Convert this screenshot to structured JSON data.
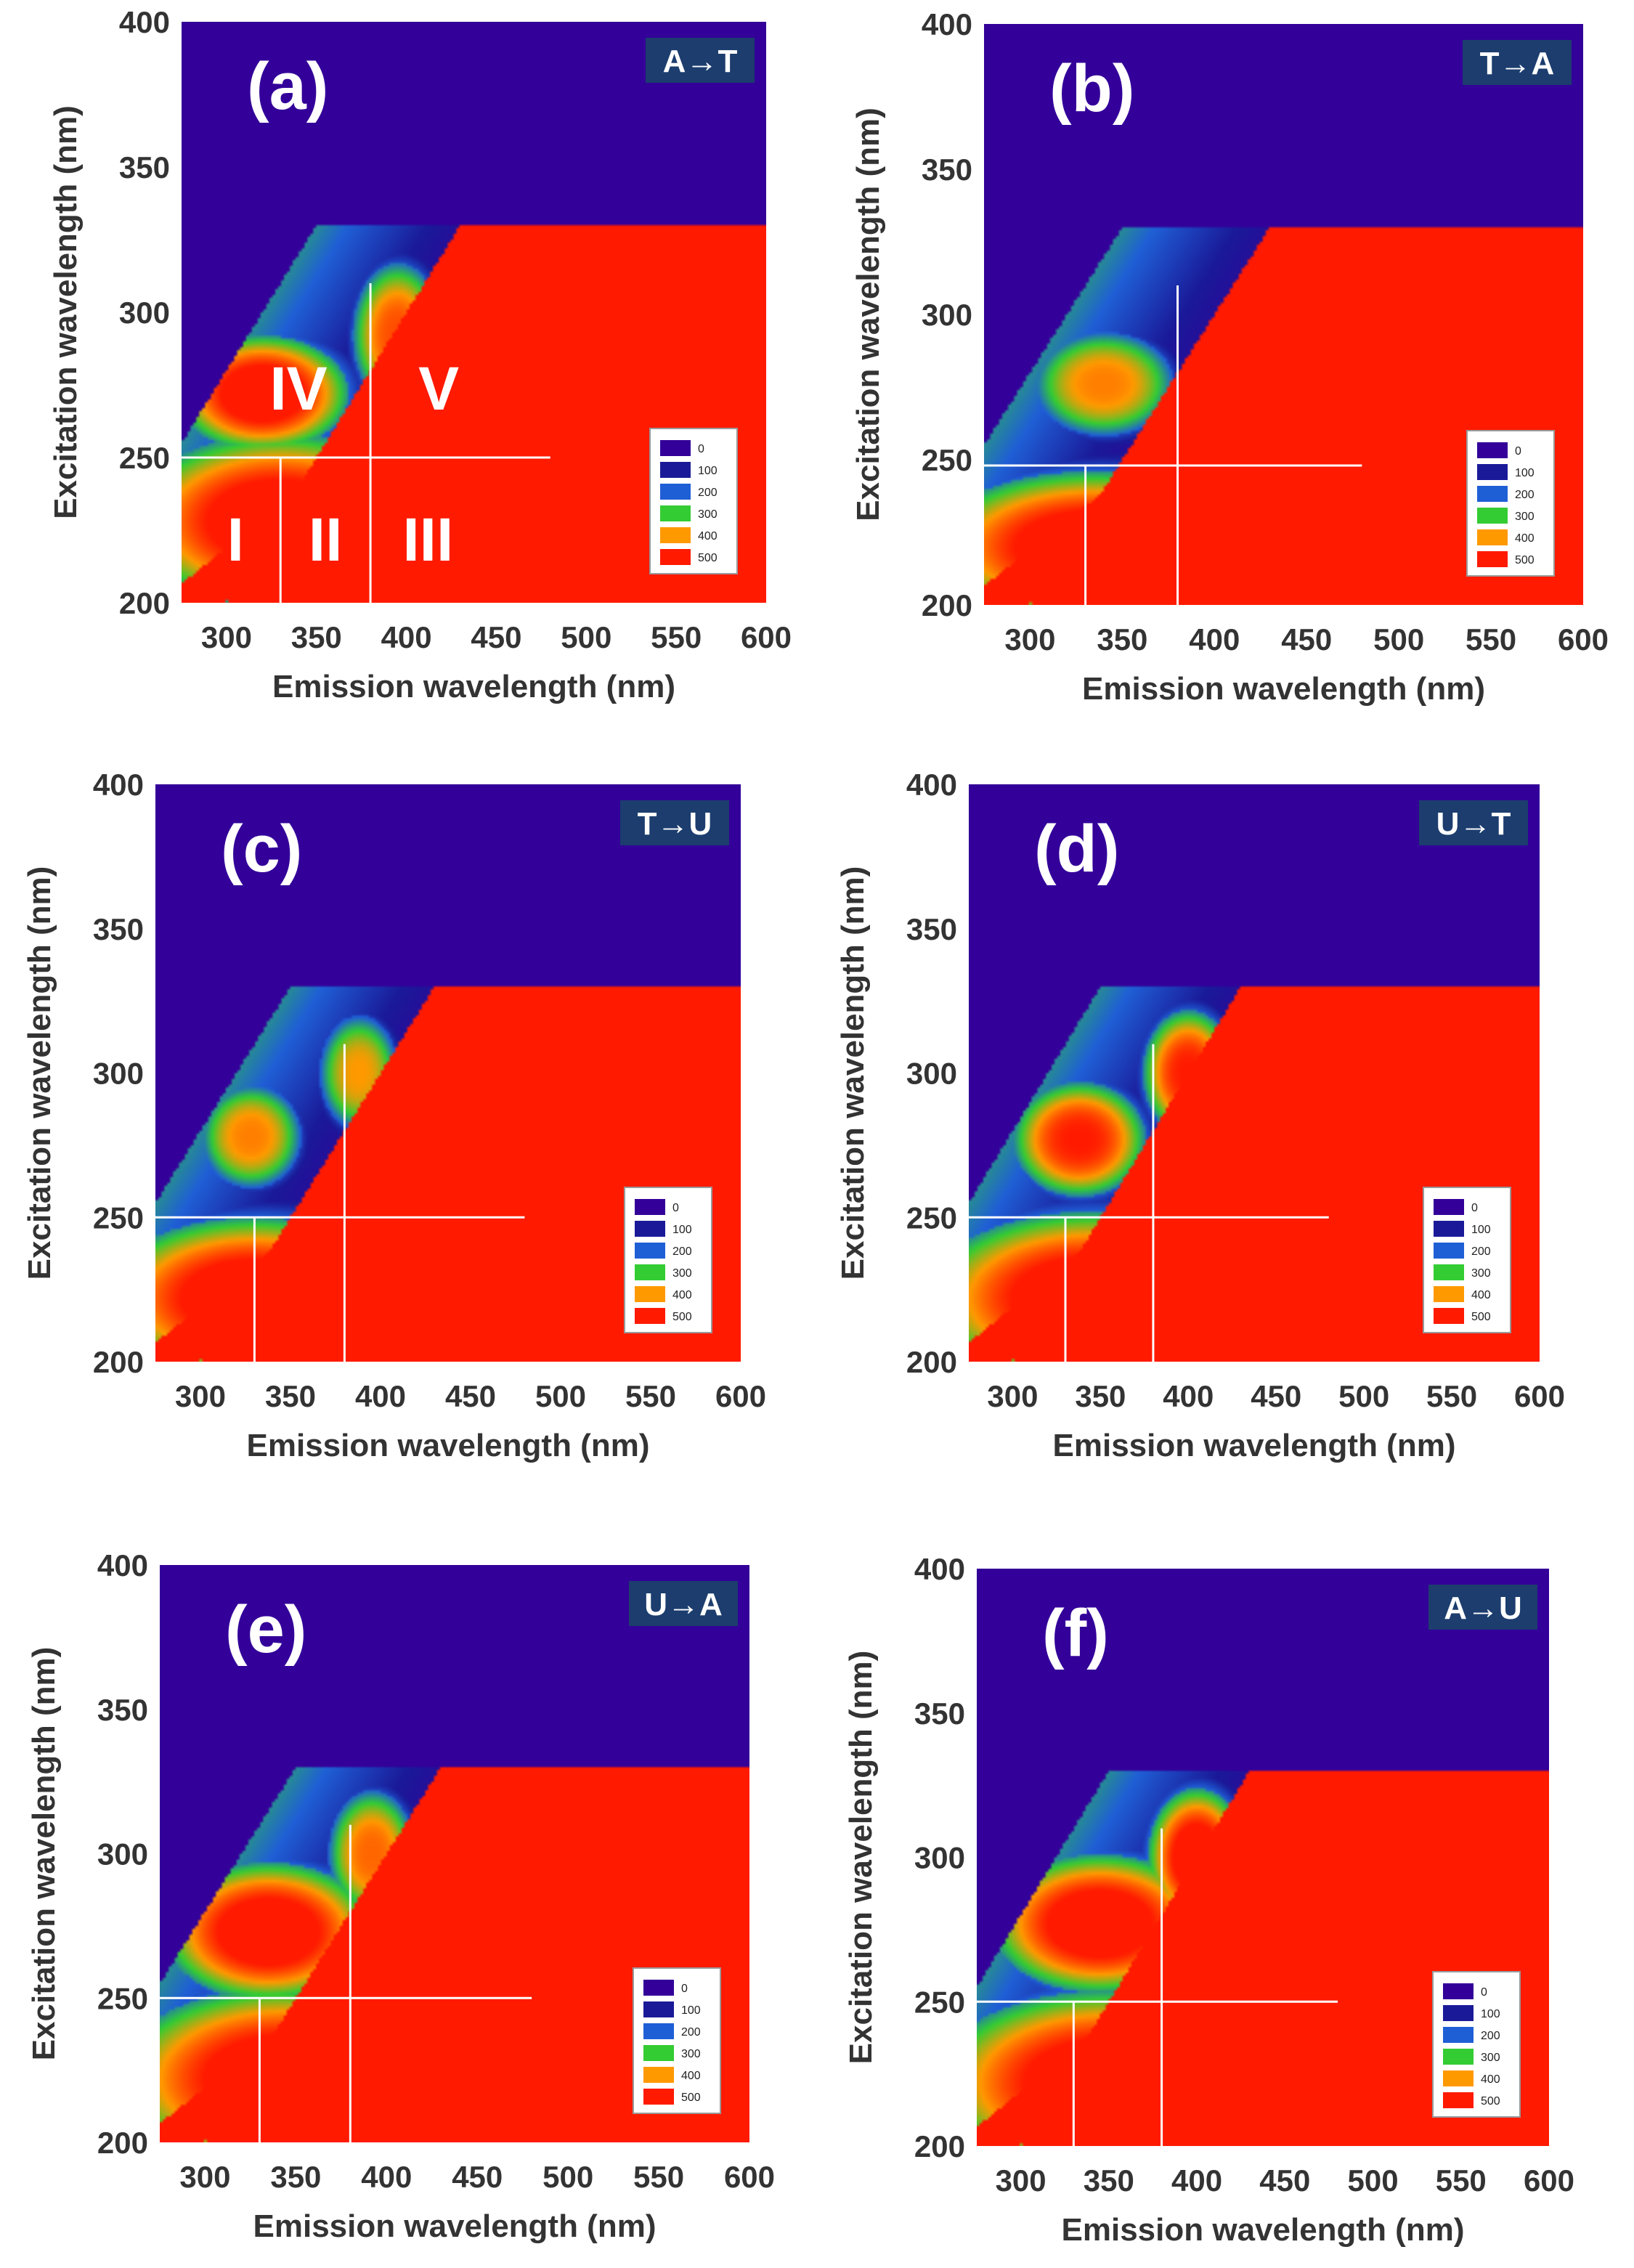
{
  "chart_data": [
    {
      "id": "a",
      "type": "heatmap",
      "panel_label": "(a)",
      "tag": "A→T",
      "xlabel": "Emission wavelength (nm)",
      "ylabel": "Excitation wavelength (nm)",
      "xlim": [
        275,
        600
      ],
      "ylim": [
        200,
        400
      ],
      "xticks": [
        "300",
        "350",
        "400",
        "450",
        "500",
        "550",
        "600"
      ],
      "yticks": [
        "200",
        "250",
        "300",
        "350",
        "400"
      ],
      "guides": {
        "x": [
          330,
          380
        ],
        "y": 250
      },
      "legend": {
        "levels": [
          "0",
          "100",
          "200",
          "300",
          "400",
          "500"
        ],
        "colors": [
          "#330099",
          "#1a1a99",
          "#1f5fd6",
          "#33cc33",
          "#ff9900",
          "#ff1a00"
        ]
      },
      "regions": [
        {
          "label": "I",
          "x": 305,
          "y": 222
        },
        {
          "label": "II",
          "x": 355,
          "y": 222
        },
        {
          "label": "III",
          "x": 412,
          "y": 222
        },
        {
          "label": "IV",
          "x": 340,
          "y": 274
        },
        {
          "label": "V",
          "x": 418,
          "y": 274
        }
      ]
    },
    {
      "id": "b",
      "type": "heatmap",
      "panel_label": "(b)",
      "tag": "T→A",
      "xlabel": "Emission wavelength (nm)",
      "ylabel": "Excitation wavelength (nm)",
      "xlim": [
        275,
        600
      ],
      "ylim": [
        200,
        400
      ],
      "xticks": [
        "300",
        "350",
        "400",
        "450",
        "500",
        "550",
        "600"
      ],
      "yticks": [
        "200",
        "250",
        "300",
        "350",
        "400"
      ],
      "guides": {
        "x": [
          330,
          380
        ],
        "y": 248
      },
      "legend": {
        "levels": [
          "0",
          "100",
          "200",
          "300",
          "400",
          "500"
        ],
        "colors": [
          "#330099",
          "#1a1a99",
          "#1f5fd6",
          "#33cc33",
          "#ff9900",
          "#ff1a00"
        ]
      },
      "regions": []
    },
    {
      "id": "c",
      "type": "heatmap",
      "panel_label": "(c)",
      "tag": "T→U",
      "xlabel": "Emission wavelength (nm)",
      "ylabel": "Excitation wavelength (nm)",
      "xlim": [
        275,
        600
      ],
      "ylim": [
        200,
        400
      ],
      "xticks": [
        "300",
        "350",
        "400",
        "450",
        "500",
        "550",
        "600"
      ],
      "yticks": [
        "200",
        "250",
        "300",
        "350",
        "400"
      ],
      "guides": {
        "x": [
          330,
          380
        ],
        "y": 250
      },
      "legend": {
        "levels": [
          "0",
          "100",
          "200",
          "300",
          "400",
          "500"
        ],
        "colors": [
          "#330099",
          "#1a1a99",
          "#1f5fd6",
          "#33cc33",
          "#ff9900",
          "#ff1a00"
        ]
      },
      "regions": []
    },
    {
      "id": "d",
      "type": "heatmap",
      "panel_label": "(d)",
      "tag": "U→T",
      "xlabel": "Emission wavelength (nm)",
      "ylabel": "Excitation wavelength (nm)",
      "xlim": [
        275,
        600
      ],
      "ylim": [
        200,
        400
      ],
      "xticks": [
        "300",
        "350",
        "400",
        "450",
        "500",
        "550",
        "600"
      ],
      "yticks": [
        "200",
        "250",
        "300",
        "350",
        "400"
      ],
      "guides": {
        "x": [
          330,
          380
        ],
        "y": 250
      },
      "legend": {
        "levels": [
          "0",
          "100",
          "200",
          "300",
          "400",
          "500"
        ],
        "colors": [
          "#330099",
          "#1a1a99",
          "#1f5fd6",
          "#33cc33",
          "#ff9900",
          "#ff1a00"
        ]
      },
      "regions": []
    },
    {
      "id": "e",
      "type": "heatmap",
      "panel_label": "(e)",
      "tag": "U→A",
      "xlabel": "Emission wavelength (nm)",
      "ylabel": "Excitation wavelength (nm)",
      "xlim": [
        275,
        600
      ],
      "ylim": [
        200,
        400
      ],
      "xticks": [
        "300",
        "350",
        "400",
        "450",
        "500",
        "550",
        "600"
      ],
      "yticks": [
        "200",
        "250",
        "300",
        "350",
        "400"
      ],
      "guides": {
        "x": [
          330,
          380
        ],
        "y": 250
      },
      "legend": {
        "levels": [
          "0",
          "100",
          "200",
          "300",
          "400",
          "500"
        ],
        "colors": [
          "#330099",
          "#1a1a99",
          "#1f5fd6",
          "#33cc33",
          "#ff9900",
          "#ff1a00"
        ]
      },
      "regions": []
    },
    {
      "id": "f",
      "type": "heatmap",
      "panel_label": "(f)",
      "tag": "A→U",
      "xlabel": "Emission wavelength (nm)",
      "ylabel": "Excitation wavelength (nm)",
      "xlim": [
        275,
        600
      ],
      "ylim": [
        200,
        400
      ],
      "xticks": [
        "300",
        "350",
        "400",
        "450",
        "500",
        "550",
        "600"
      ],
      "yticks": [
        "200",
        "250",
        "300",
        "350",
        "400"
      ],
      "guides": {
        "x": [
          330,
          380
        ],
        "y": 250
      },
      "legend": {
        "levels": [
          "0",
          "100",
          "200",
          "300",
          "400",
          "500"
        ],
        "colors": [
          "#330099",
          "#1a1a99",
          "#1f5fd6",
          "#33cc33",
          "#ff9900",
          "#ff1a00"
        ]
      },
      "regions": []
    }
  ]
}
